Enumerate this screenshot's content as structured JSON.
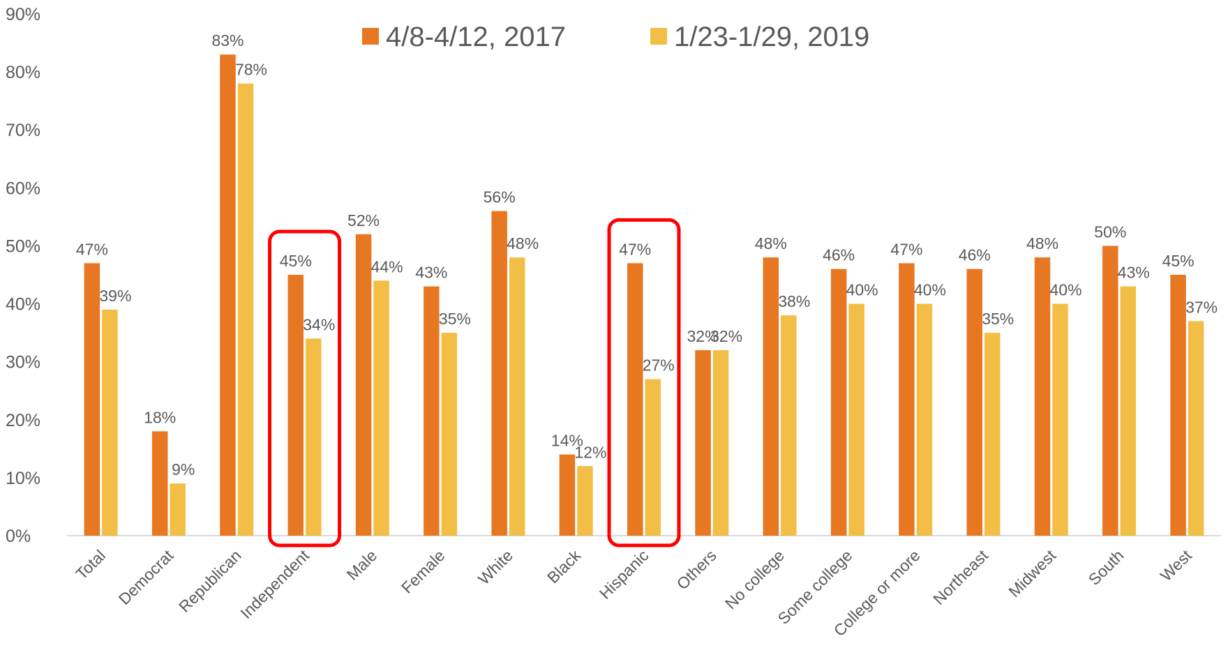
{
  "chart_data": {
    "type": "bar",
    "categories": [
      "Total",
      "Democrat",
      "Republican",
      "Independent",
      "Male",
      "Female",
      "White",
      "Black",
      "Hispanic",
      "Others",
      "No college",
      "Some college",
      "College or more",
      "Northeast",
      "Midwest",
      "South",
      "West"
    ],
    "series": [
      {
        "name": "4/8-4/12, 2017",
        "color": "#E87722",
        "values": [
          47,
          18,
          83,
          45,
          52,
          43,
          56,
          14,
          47,
          32,
          48,
          46,
          47,
          46,
          48,
          50,
          45
        ],
        "value_labels": [
          "47%",
          "18%",
          "83%",
          "45%",
          "52%",
          "43%",
          "56%",
          "14%",
          "47%",
          "32%",
          "48%",
          "46%",
          "47%",
          "46%",
          "48%",
          "50%",
          "45%"
        ]
      },
      {
        "name": "1/23-1/29, 2019",
        "color": "#F2BE45",
        "values": [
          39,
          9,
          78,
          34,
          44,
          35,
          48,
          12,
          27,
          32,
          38,
          40,
          40,
          35,
          40,
          43,
          37
        ],
        "value_labels": [
          "39%",
          "9%",
          "78%",
          "34%",
          "44%",
          "35%",
          "48%",
          "12%",
          "27%",
          "32%",
          "38%",
          "40%",
          "40%",
          "35%",
          "40%",
          "43%",
          "37%"
        ]
      }
    ],
    "ylim": [
      0,
      90
    ],
    "yticks": [
      {
        "value": 0,
        "label": "0%"
      },
      {
        "value": 10,
        "label": "10%"
      },
      {
        "value": 20,
        "label": "20%"
      },
      {
        "value": 30,
        "label": "30%"
      },
      {
        "value": 40,
        "label": "40%"
      },
      {
        "value": 50,
        "label": "50%"
      },
      {
        "value": 60,
        "label": "60%"
      },
      {
        "value": 70,
        "label": "70%"
      },
      {
        "value": 80,
        "label": "80%"
      },
      {
        "value": 90,
        "label": "90%"
      }
    ],
    "grid": false,
    "legend": "top"
  }
}
